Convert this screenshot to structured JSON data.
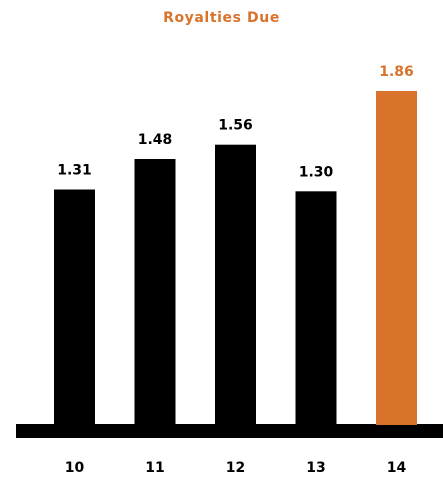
{
  "chart_data": {
    "type": "bar",
    "title": "Royalties Due",
    "categories": [
      "10",
      "11",
      "12",
      "13",
      "14"
    ],
    "values": [
      1.31,
      1.48,
      1.56,
      1.3,
      1.86
    ],
    "value_labels": [
      "1.31",
      "1.48",
      "1.56",
      "1.30",
      "1.86"
    ],
    "highlight_category": "14",
    "xlabel": "",
    "ylabel": "",
    "ylim": [
      0,
      1.86
    ],
    "grid": false,
    "legend": "none"
  },
  "colors": {
    "bar": "#000000",
    "highlight": "#d9732b",
    "title": "#d9732b",
    "label": "#000000",
    "axis": "#000000"
  }
}
